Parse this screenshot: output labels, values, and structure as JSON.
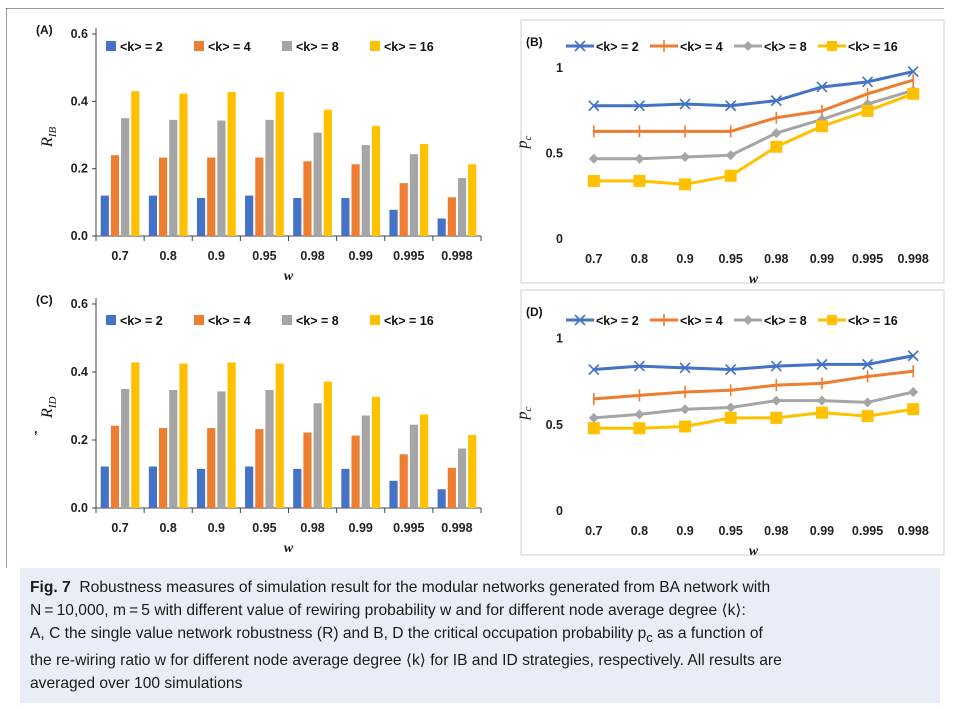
{
  "colors": {
    "k2": "#4472C4",
    "k4": "#ED7D31",
    "k8": "#A5A5A5",
    "k16": "#FFC000"
  },
  "chart_data": [
    {
      "panel": "(A)",
      "type": "bar",
      "categories": [
        "0.7",
        "0.8",
        "0.9",
        "0.95",
        "0.98",
        "0.99",
        "0.995",
        "0.998"
      ],
      "xlabel": "w",
      "ylabel": "R_IB",
      "ylim": [
        0,
        0.6
      ],
      "yticks": [
        "0.0",
        "0.2",
        "0.4",
        "0.6"
      ],
      "series": [
        {
          "name": "<k> = 2",
          "values": [
            0.12,
            0.12,
            0.113,
            0.12,
            0.113,
            0.113,
            0.078,
            0.052
          ]
        },
        {
          "name": "<k> = 4",
          "values": [
            0.24,
            0.233,
            0.233,
            0.233,
            0.222,
            0.213,
            0.157,
            0.115
          ]
        },
        {
          "name": "<k> = 8",
          "values": [
            0.35,
            0.345,
            0.343,
            0.345,
            0.307,
            0.27,
            0.243,
            0.172
          ]
        },
        {
          "name": "<k> = 16",
          "values": [
            0.43,
            0.423,
            0.428,
            0.428,
            0.375,
            0.327,
            0.273,
            0.213
          ]
        }
      ]
    },
    {
      "panel": "(B)",
      "type": "line",
      "categories": [
        "0.7",
        "0.8",
        "0.9",
        "0.95",
        "0.98",
        "0.99",
        "0.995",
        "0.998"
      ],
      "xlabel": "w",
      "ylabel": "p_c",
      "ylim": [
        0,
        1.2
      ],
      "yticks": [
        "0",
        "0.5",
        "1"
      ],
      "series": [
        {
          "name": "<k> = 2",
          "values": [
            0.78,
            0.78,
            0.79,
            0.78,
            0.81,
            0.89,
            0.92,
            0.98
          ]
        },
        {
          "name": "<k> = 4",
          "values": [
            0.63,
            0.63,
            0.63,
            0.63,
            0.71,
            0.75,
            0.85,
            0.93
          ]
        },
        {
          "name": "<k> = 8",
          "values": [
            0.47,
            0.47,
            0.48,
            0.49,
            0.62,
            0.7,
            0.79,
            0.87
          ]
        },
        {
          "name": "<k> = 16",
          "values": [
            0.34,
            0.34,
            0.32,
            0.37,
            0.54,
            0.66,
            0.75,
            0.85
          ]
        }
      ]
    },
    {
      "panel": "(C)",
      "type": "bar",
      "categories": [
        "0.7",
        "0.8",
        "0.9",
        "0.95",
        "0.98",
        "0.99",
        "0.995",
        "0.998"
      ],
      "xlabel": "w",
      "ylabel": "R_ID",
      "ylim": [
        0,
        0.6
      ],
      "yticks": [
        "0.0",
        "0.2",
        "0.4",
        "0.6"
      ],
      "series": [
        {
          "name": "<k> = 2",
          "values": [
            0.122,
            0.122,
            0.115,
            0.122,
            0.115,
            0.115,
            0.08,
            0.055
          ]
        },
        {
          "name": "<k> = 4",
          "values": [
            0.242,
            0.235,
            0.235,
            0.232,
            0.222,
            0.213,
            0.158,
            0.118
          ]
        },
        {
          "name": "<k> = 8",
          "values": [
            0.35,
            0.347,
            0.343,
            0.347,
            0.308,
            0.272,
            0.245,
            0.175
          ]
        },
        {
          "name": "<k> = 16",
          "values": [
            0.428,
            0.425,
            0.428,
            0.425,
            0.372,
            0.327,
            0.275,
            0.215
          ]
        }
      ]
    },
    {
      "panel": "(D)",
      "type": "line",
      "categories": [
        "0.7",
        "0.8",
        "0.9",
        "0.95",
        "0.98",
        "0.99",
        "0.995",
        "0.998"
      ],
      "xlabel": "w",
      "ylabel": "p_c",
      "ylim": [
        0,
        1.2
      ],
      "yticks": [
        "0",
        "0.5",
        "1"
      ],
      "series": [
        {
          "name": "<k> = 2",
          "values": [
            0.82,
            0.84,
            0.83,
            0.82,
            0.84,
            0.85,
            0.85,
            0.9
          ]
        },
        {
          "name": "<k> = 4",
          "values": [
            0.65,
            0.67,
            0.69,
            0.7,
            0.73,
            0.74,
            0.78,
            0.81
          ]
        },
        {
          "name": "<k> = 8",
          "values": [
            0.54,
            0.56,
            0.59,
            0.6,
            0.64,
            0.64,
            0.63,
            0.69
          ]
        },
        {
          "name": "<k> = 16",
          "values": [
            0.48,
            0.48,
            0.49,
            0.54,
            0.54,
            0.57,
            0.55,
            0.59
          ]
        }
      ]
    }
  ],
  "caption": {
    "fig_label": "Fig. 7",
    "part1": "Robustness measures of simulation result for the modular networks generated from BA network with",
    "part2": "N = 10,000, m = 5 with different value of rewiring probability w and for different node average degree ⟨k⟩:",
    "part3": "A, C the single value network robustness (R) and B, D the critical occupation probability p",
    "part3_sub": "c",
    "part3_end": " as a function of",
    "part4": "the re-wiring ratio w for different node average degree ⟨k⟩ for IB and ID strategies, respectively. All results are",
    "part5": "averaged over 100 simulations"
  }
}
